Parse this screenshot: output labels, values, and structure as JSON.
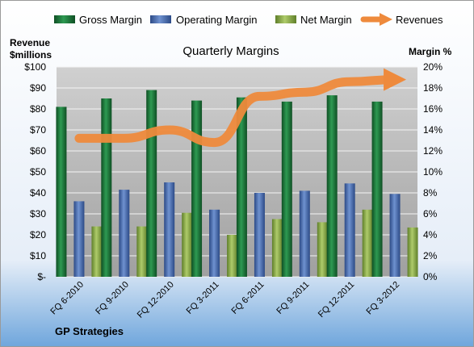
{
  "chart_data": {
    "type": "bar",
    "title": "Quarterly Margins",
    "footer": "GP Strategies",
    "y_left_title_line1": "Revenue",
    "y_left_title_line2": "$millions",
    "y_right_title": "Margin %",
    "categories": [
      "FQ 6-2010",
      "FQ 9-2010",
      "FQ 12-2010",
      "FQ 3-2011",
      "FQ 6-2011",
      "FQ 9-2011",
      "FQ 12-2011",
      "FQ 3-2012"
    ],
    "y_left_ticks": [
      "$-",
      "$10",
      "$20",
      "$30",
      "$40",
      "$50",
      "$60",
      "$70",
      "$80",
      "$90",
      "$100"
    ],
    "y_left_range": [
      0,
      100
    ],
    "y_right_ticks": [
      "0%",
      "2%",
      "4%",
      "6%",
      "8%",
      "10%",
      "12%",
      "14%",
      "16%",
      "18%",
      "20%"
    ],
    "y_right_range": [
      0,
      20
    ],
    "series": [
      {
        "name": "Gross Margin",
        "axis": "right",
        "kind": "bar",
        "color": "#1e7b3c",
        "values": [
          16.2,
          17.0,
          17.8,
          16.8,
          17.1,
          16.7,
          17.3,
          16.7
        ]
      },
      {
        "name": "Operating Margin",
        "axis": "right",
        "kind": "bar",
        "color": "#4a6fb5",
        "values": [
          7.2,
          8.3,
          9.0,
          6.4,
          8.0,
          8.2,
          8.9,
          7.9
        ]
      },
      {
        "name": "Net Margin",
        "axis": "right",
        "kind": "bar",
        "color": "#8fb04a",
        "values": [
          4.8,
          4.8,
          6.1,
          4.0,
          5.5,
          5.2,
          6.4,
          4.7
        ]
      },
      {
        "name": "Revenues",
        "axis": "left",
        "kind": "line",
        "color": "#ee8a3c",
        "values": [
          66,
          66,
          70,
          64,
          86,
          88,
          93,
          94
        ]
      }
    ],
    "grid": true,
    "legend_position": "top"
  }
}
